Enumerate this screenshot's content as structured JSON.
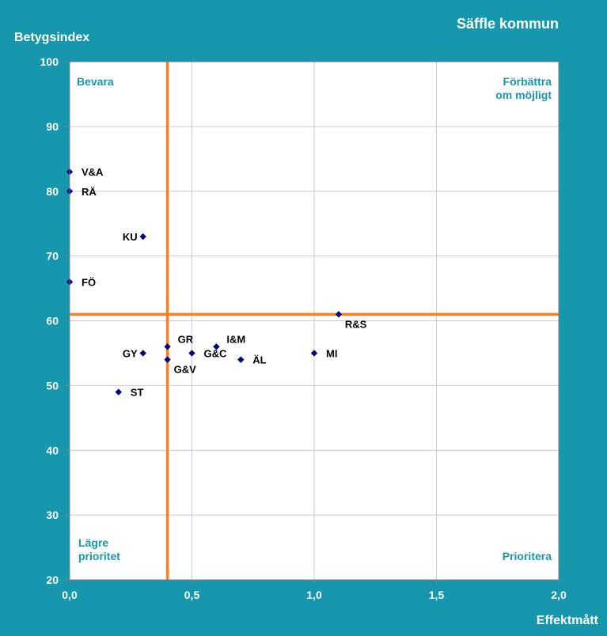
{
  "chart_data": {
    "type": "scatter",
    "title": "Säffle kommun",
    "xlabel": "Effektmått",
    "ylabel": "Betygsindex",
    "xlim": [
      0,
      2
    ],
    "ylim": [
      20,
      100
    ],
    "x_ticks": [
      "0,0",
      "0,5",
      "1,0",
      "1,5",
      "2,0"
    ],
    "x_tick_values": [
      0,
      0.5,
      1,
      1.5,
      2
    ],
    "y_ticks": [
      "20",
      "30",
      "40",
      "50",
      "60",
      "70",
      "80",
      "90",
      "100"
    ],
    "y_tick_values": [
      20,
      30,
      40,
      50,
      60,
      70,
      80,
      90,
      100
    ],
    "grid": true,
    "reference_lines": {
      "x": 0.4,
      "y": 61
    },
    "quadrants": {
      "top_left": [
        "Bevara"
      ],
      "top_right": [
        "Förbättra",
        "om möjligt"
      ],
      "bottom_left": [
        "Lägre",
        "prioritet"
      ],
      "bottom_right": [
        "Prioritera"
      ]
    },
    "points": [
      {
        "label": "V&A",
        "x": 0.0,
        "y": 83,
        "side": "right"
      },
      {
        "label": "RÄ",
        "x": 0.0,
        "y": 80,
        "side": "right"
      },
      {
        "label": "KU",
        "x": 0.3,
        "y": 73,
        "side": "left"
      },
      {
        "label": "FÖ",
        "x": 0.0,
        "y": 66,
        "side": "right"
      },
      {
        "label": "R&S",
        "x": 1.1,
        "y": 61,
        "side": "below-right"
      },
      {
        "label": "GY",
        "x": 0.3,
        "y": 55,
        "side": "left"
      },
      {
        "label": "GR",
        "x": 0.4,
        "y": 56,
        "side": "above-right"
      },
      {
        "label": "G&V",
        "x": 0.4,
        "y": 54,
        "side": "below-right"
      },
      {
        "label": "G&C",
        "x": 0.5,
        "y": 55,
        "side": "right"
      },
      {
        "label": "I&M",
        "x": 0.6,
        "y": 56,
        "side": "above-right"
      },
      {
        "label": "ÄL",
        "x": 0.7,
        "y": 54,
        "side": "right"
      },
      {
        "label": "MI",
        "x": 1.0,
        "y": 55,
        "side": "right"
      },
      {
        "label": "ST",
        "x": 0.2,
        "y": 49,
        "side": "right"
      }
    ],
    "colors": {
      "background": "#1797ad",
      "plot": "#ffffff",
      "grid": "#c9c9d9",
      "reference": "#ff7f1e",
      "marker": "#000080",
      "quadrant_text": "#1797ad"
    }
  }
}
